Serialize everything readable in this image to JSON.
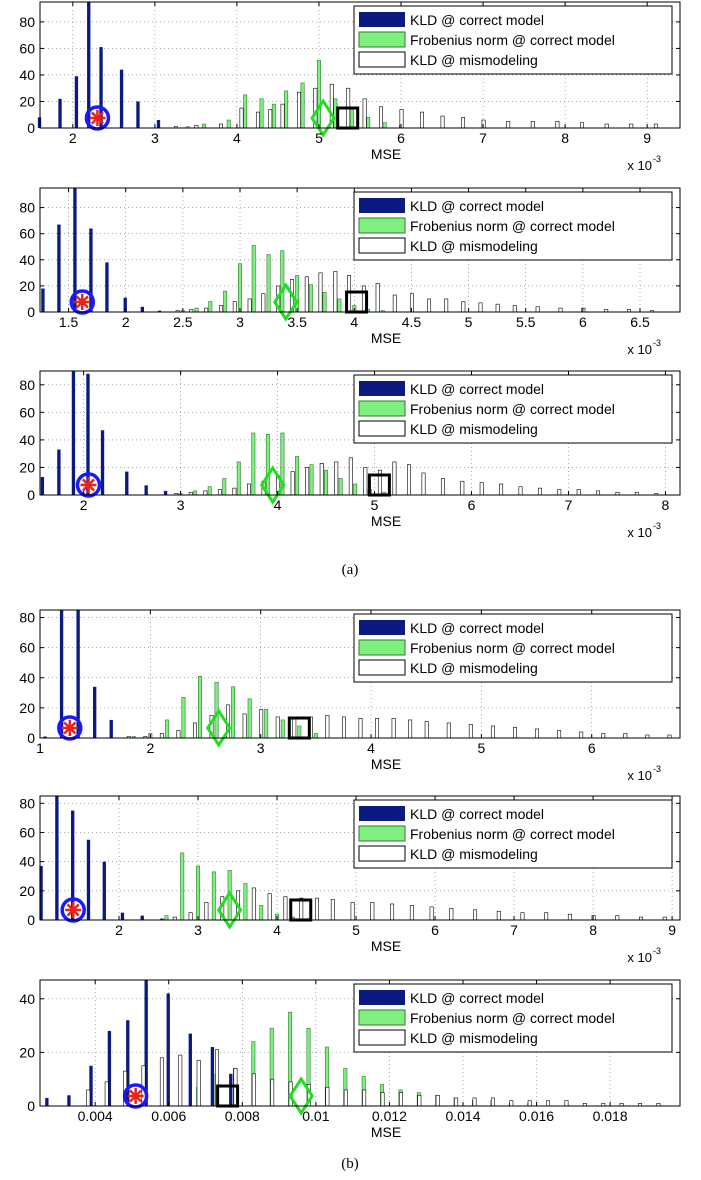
{
  "legend_labels": [
    "KLD @ correct model",
    "Frobenius norm @ correct model",
    "KLD @ mismodeling"
  ],
  "series_colors": [
    "#0a1a80",
    "#7ff07f",
    "#ffffff"
  ],
  "marker_colors": {
    "circle": "#1a1aff",
    "star": "#e8231a",
    "diamond": "#22dd22",
    "square": "#000000"
  },
  "sci_label": "x 10",
  "sci_exponent": "-3",
  "captions": [
    "(a)",
    "(b)"
  ],
  "chart_data": [
    {
      "type": "bar",
      "group": "(a)",
      "xlabel": "MSE",
      "ylabel": "",
      "sci": true,
      "xlim": [
        1.6,
        9.4
      ],
      "ylim": [
        0,
        95
      ],
      "xticks": [
        2,
        3,
        4,
        5,
        6,
        7,
        8,
        9
      ],
      "xticklabels": [
        "2",
        "3",
        "4",
        "5",
        "6",
        "7",
        "8",
        "9"
      ],
      "yticks": [
        0,
        20,
        40,
        60,
        80
      ],
      "yticklabels": [
        "0",
        "20",
        "40",
        "60",
        "80"
      ],
      "markers": {
        "star_circle": 2.3,
        "diamond": 5.05,
        "square": 5.35
      },
      "series": [
        {
          "name": "KLD @ correct model",
          "x": [
            1.6,
            1.85,
            2.05,
            2.2,
            2.35,
            2.6,
            2.8,
            3.05
          ],
          "values": [
            8,
            22,
            39,
            95,
            61,
            44,
            20,
            6
          ]
        },
        {
          "name": "Frobenius norm @ correct model",
          "x": [
            3.4,
            3.6,
            3.9,
            4.1,
            4.3,
            4.45,
            4.6,
            4.8,
            5.0,
            5.2,
            5.4,
            5.6,
            5.8,
            6.0
          ],
          "values": [
            1,
            3,
            6,
            25,
            22,
            18,
            28,
            34,
            51,
            22,
            14,
            8,
            4,
            2
          ]
        },
        {
          "name": "KLD @ mismodeling",
          "x": [
            3.25,
            3.5,
            3.8,
            4.05,
            4.25,
            4.4,
            4.55,
            4.75,
            4.95,
            5.15,
            5.35,
            5.55,
            5.75,
            6.0,
            6.25,
            6.5,
            6.75,
            7.0,
            7.3,
            7.6,
            7.9,
            8.2,
            8.5,
            8.8,
            9.1
          ],
          "values": [
            1,
            2,
            3,
            15,
            12,
            14,
            18,
            27,
            30,
            33,
            30,
            22,
            16,
            14,
            12,
            9,
            8,
            6,
            5,
            5,
            5,
            4,
            3,
            3,
            3
          ]
        }
      ]
    },
    {
      "type": "bar",
      "group": "(a)",
      "xlabel": "MSE",
      "ylabel": "",
      "sci": true,
      "xlim": [
        1.25,
        6.85
      ],
      "ylim": [
        0,
        95
      ],
      "xticks": [
        1.5,
        2,
        2.5,
        3,
        3.5,
        4,
        4.5,
        5,
        5.5,
        6,
        6.5
      ],
      "xticklabels": [
        "1.5",
        "2",
        "2.5",
        "3",
        "3.5",
        "4",
        "4.5",
        "5",
        "5.5",
        "6",
        "6.5"
      ],
      "yticks": [
        0,
        20,
        40,
        60,
        80
      ],
      "yticklabels": [
        "0",
        "20",
        "40",
        "60",
        "80"
      ],
      "markers": {
        "star_circle": 1.62,
        "diamond": 3.4,
        "square": 4.02
      },
      "series": [
        {
          "name": "KLD @ correct model",
          "x": [
            1.28,
            1.42,
            1.56,
            1.7,
            1.84,
            2.0,
            2.15,
            2.3
          ],
          "values": [
            18,
            67,
            95,
            64,
            38,
            11,
            4,
            1
          ]
        },
        {
          "name": "Frobenius norm @ correct model",
          "x": [
            2.5,
            2.62,
            2.74,
            2.87,
            3.0,
            3.12,
            3.25,
            3.37,
            3.5,
            3.62,
            3.74,
            3.87,
            4.0,
            4.12,
            4.25
          ],
          "values": [
            1,
            3,
            8,
            16,
            37,
            51,
            44,
            47,
            28,
            21,
            15,
            10,
            5,
            2,
            1
          ]
        },
        {
          "name": "KLD @ mismodeling",
          "x": [
            2.45,
            2.57,
            2.7,
            2.83,
            2.95,
            3.08,
            3.2,
            3.33,
            3.45,
            3.58,
            3.7,
            3.83,
            3.95,
            4.08,
            4.2,
            4.35,
            4.5,
            4.65,
            4.8,
            4.95,
            5.1,
            5.25,
            5.4,
            5.6,
            5.8,
            6.0,
            6.2,
            6.4,
            6.6
          ],
          "values": [
            1,
            2,
            3,
            5,
            8,
            10,
            14,
            20,
            25,
            27,
            30,
            31,
            28,
            20,
            22,
            13,
            14,
            10,
            10,
            8,
            7,
            6,
            5,
            4,
            3,
            3,
            2,
            2,
            1
          ]
        }
      ]
    },
    {
      "type": "bar",
      "group": "(a)",
      "xlabel": "MSE",
      "ylabel": "",
      "sci": true,
      "xlim": [
        1.55,
        8.15
      ],
      "ylim": [
        0,
        90
      ],
      "xticks": [
        2,
        3,
        4,
        5,
        6,
        7,
        8
      ],
      "xticklabels": [
        "2",
        "3",
        "4",
        "5",
        "6",
        "7",
        "8"
      ],
      "yticks": [
        0,
        20,
        40,
        60,
        80
      ],
      "yticklabels": [
        "0",
        "20",
        "40",
        "60",
        "80"
      ],
      "markers": {
        "star_circle": 2.05,
        "diamond": 3.95,
        "square": 5.05
      },
      "series": [
        {
          "name": "KLD @ correct model",
          "x": [
            1.58,
            1.75,
            1.9,
            2.05,
            2.2,
            2.45,
            2.65,
            2.85
          ],
          "values": [
            13,
            33,
            90,
            88,
            47,
            17,
            7,
            3
          ]
        },
        {
          "name": "Frobenius norm @ correct model",
          "x": [
            3.0,
            3.15,
            3.3,
            3.45,
            3.6,
            3.75,
            3.9,
            4.05,
            4.2,
            4.35,
            4.5,
            4.65,
            4.8,
            4.95,
            5.1
          ],
          "values": [
            1,
            3,
            6,
            12,
            24,
            45,
            44,
            45,
            28,
            22,
            18,
            12,
            8,
            4,
            2
          ]
        },
        {
          "name": "KLD @ mismodeling",
          "x": [
            2.95,
            3.1,
            3.25,
            3.4,
            3.55,
            3.7,
            3.85,
            4.0,
            4.15,
            4.3,
            4.45,
            4.6,
            4.75,
            4.9,
            5.05,
            5.2,
            5.35,
            5.5,
            5.7,
            5.9,
            6.1,
            6.3,
            6.5,
            6.7,
            6.9,
            7.1,
            7.3,
            7.5,
            7.7,
            7.9
          ],
          "values": [
            1,
            2,
            3,
            4,
            5,
            8,
            10,
            14,
            17,
            20,
            23,
            24,
            27,
            20,
            18,
            24,
            22,
            16,
            12,
            10,
            9,
            8,
            6,
            5,
            4,
            4,
            3,
            2,
            2,
            1
          ]
        }
      ]
    },
    {
      "type": "bar",
      "group": "(b)",
      "xlabel": "MSE",
      "ylabel": "",
      "sci": true,
      "xlim": [
        1.0,
        6.8
      ],
      "ylim": [
        0,
        85
      ],
      "xticks": [
        1,
        2,
        3,
        4,
        5,
        6
      ],
      "xticklabels": [
        "1",
        "2",
        "3",
        "4",
        "5",
        "6"
      ],
      "yticks": [
        0,
        20,
        40,
        60,
        80
      ],
      "yticklabels": [
        "0",
        "20",
        "40",
        "60",
        "80"
      ],
      "markers": {
        "star_circle": 1.27,
        "diamond": 2.62,
        "square": 3.35
      },
      "series": [
        {
          "name": "KLD @ correct model",
          "x": [
            1.05,
            1.2,
            1.35,
            1.5,
            1.65
          ],
          "values": [
            1,
            85,
            85,
            34,
            12
          ]
        },
        {
          "name": "Frobenius norm @ correct model",
          "x": [
            1.85,
            2.0,
            2.15,
            2.3,
            2.45,
            2.6,
            2.75,
            2.9,
            3.05,
            3.2,
            3.35,
            3.5
          ],
          "values": [
            1,
            3,
            12,
            27,
            41,
            37,
            34,
            26,
            19,
            12,
            8,
            3
          ]
        },
        {
          "name": "KLD @ mismodeling",
          "x": [
            1.8,
            1.95,
            2.1,
            2.25,
            2.4,
            2.55,
            2.7,
            2.85,
            3.0,
            3.15,
            3.3,
            3.45,
            3.6,
            3.75,
            3.9,
            4.05,
            4.2,
            4.35,
            4.5,
            4.7,
            4.9,
            5.1,
            5.3,
            5.5,
            5.7,
            5.9,
            6.1,
            6.3,
            6.5,
            6.7
          ],
          "values": [
            1,
            1,
            3,
            5,
            10,
            15,
            22,
            16,
            19,
            14,
            14,
            14,
            15,
            14,
            13,
            13,
            13,
            12,
            11,
            10,
            9,
            8,
            7,
            6,
            5,
            4,
            3,
            3,
            2,
            2
          ]
        }
      ]
    },
    {
      "type": "bar",
      "group": "(b)",
      "xlabel": "MSE",
      "ylabel": "",
      "sci": true,
      "xlim": [
        1.0,
        9.1
      ],
      "ylim": [
        0,
        85
      ],
      "xticks": [
        2,
        3,
        4,
        5,
        6,
        7,
        8,
        9
      ],
      "xticklabels": [
        "2",
        "3",
        "4",
        "5",
        "6",
        "7",
        "8",
        "9"
      ],
      "yticks": [
        0,
        20,
        40,
        60,
        80
      ],
      "yticklabels": [
        "0",
        "20",
        "40",
        "60",
        "80"
      ],
      "markers": {
        "star_circle": 1.42,
        "diamond": 3.4,
        "square": 4.3
      },
      "series": [
        {
          "name": "KLD @ correct model",
          "x": [
            1.02,
            1.22,
            1.42,
            1.62,
            1.82,
            2.05,
            2.3,
            2.55
          ],
          "values": [
            37,
            85,
            75,
            55,
            40,
            5,
            3,
            1
          ]
        },
        {
          "name": "Frobenius norm @ correct model",
          "x": [
            2.6,
            2.8,
            3.0,
            3.2,
            3.4,
            3.6,
            3.8,
            4.0,
            4.2,
            4.4
          ],
          "values": [
            3,
            46,
            37,
            33,
            34,
            25,
            10,
            4,
            2,
            1
          ]
        },
        {
          "name": "KLD @ mismodeling",
          "x": [
            2.7,
            2.9,
            3.1,
            3.3,
            3.5,
            3.7,
            3.9,
            4.1,
            4.3,
            4.5,
            4.7,
            4.95,
            5.2,
            5.45,
            5.7,
            5.95,
            6.2,
            6.5,
            6.8,
            7.1,
            7.4,
            7.7,
            8.0,
            8.3,
            8.6,
            8.9
          ],
          "values": [
            2,
            5,
            12,
            16,
            20,
            22,
            18,
            16,
            15,
            15,
            14,
            12,
            12,
            11,
            10,
            9,
            8,
            7,
            6,
            5,
            5,
            4,
            3,
            3,
            2,
            2
          ]
        }
      ]
    },
    {
      "type": "bar",
      "group": "(b)",
      "xlabel": "MSE",
      "ylabel": "",
      "sci": false,
      "xlim": [
        0.0025,
        0.0199
      ],
      "ylim": [
        0,
        47
      ],
      "xticks": [
        0.004,
        0.006,
        0.008,
        0.01,
        0.012,
        0.014,
        0.016,
        0.018
      ],
      "xticklabels": [
        "0.004",
        "0.006",
        "0.008",
        "0.01",
        "0.012",
        "0.014",
        "0.016",
        "0.018"
      ],
      "yticks": [
        0,
        20,
        40
      ],
      "yticklabels": [
        "0",
        "20",
        "40"
      ],
      "markers": {
        "star_circle": 0.0051,
        "diamond": 0.0096,
        "square": 0.0076
      },
      "series": [
        {
          "name": "KLD @ correct model",
          "x": [
            0.0027,
            0.0033,
            0.0039,
            0.0044,
            0.0049,
            0.0054,
            0.006,
            0.0066,
            0.0072,
            0.0077
          ],
          "values": [
            3,
            4,
            15,
            28,
            32,
            47,
            42,
            27,
            22,
            12
          ]
        },
        {
          "name": "Frobenius norm @ correct model",
          "x": [
            0.0068,
            0.0073,
            0.0078,
            0.0083,
            0.0088,
            0.0093,
            0.0098,
            0.0103,
            0.0108,
            0.0113,
            0.0118,
            0.0123,
            0.0128,
            0.0133,
            0.0138,
            0.0143,
            0.0148,
            0.0153,
            0.0158
          ],
          "values": [
            7,
            12,
            14,
            24,
            29,
            35,
            29,
            22,
            14,
            11,
            8,
            6,
            5,
            4,
            3,
            2,
            2,
            1,
            1
          ]
        },
        {
          "name": "KLD @ mismodeling",
          "x": [
            0.0038,
            0.0043,
            0.0048,
            0.0053,
            0.0058,
            0.0063,
            0.0068,
            0.0073,
            0.0078,
            0.0083,
            0.0088,
            0.0093,
            0.0098,
            0.0103,
            0.0108,
            0.0113,
            0.0118,
            0.0123,
            0.0128,
            0.0133,
            0.0138,
            0.0143,
            0.0148,
            0.0153,
            0.0158,
            0.0163,
            0.0168,
            0.0173,
            0.0178,
            0.0183,
            0.0188,
            0.0193
          ],
          "values": [
            6,
            9,
            13,
            15,
            18,
            19,
            17,
            21,
            14,
            12,
            10,
            9,
            8,
            7,
            6,
            6,
            5,
            5,
            4,
            4,
            3,
            3,
            3,
            2,
            2,
            2,
            2,
            1,
            1,
            1,
            1,
            1
          ]
        }
      ]
    }
  ]
}
